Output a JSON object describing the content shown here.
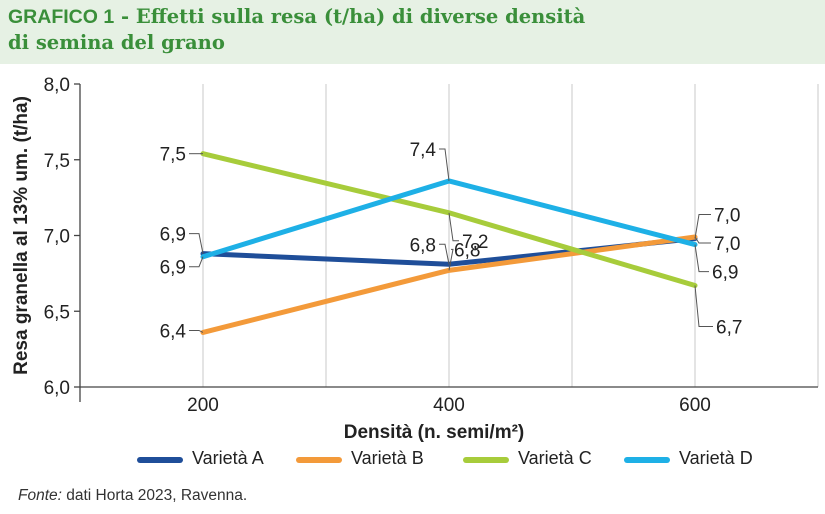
{
  "figure": {
    "title_prefix": "GRAFICO 1",
    "title_text": " - Effetti sulla resa (t/ha) di diverse densità",
    "title_line2": "di semina del grano",
    "source_label": "Fonte:",
    "source_text": " dati Horta 2023, Ravenna."
  },
  "colors": {
    "header_bg": "#e6f1e4",
    "title": "#3a8f3a",
    "varieta_a": "#1f4e99",
    "varieta_b": "#f39a3a",
    "varieta_c": "#a7cc3b",
    "varieta_d": "#1eb0e6"
  },
  "chart_data": {
    "type": "line",
    "title": "GRAFICO 1 - Effetti sulla resa (t/ha) di diverse densità di semina del grano",
    "xlabel": "Densità (n. semi/m²)",
    "ylabel": "Resa granella al 13% um. (t/ha)",
    "categories": [
      "200",
      "400",
      "600"
    ],
    "ylim": [
      6.0,
      8.0
    ],
    "yticks": [
      "6,0",
      "6,5",
      "7,0",
      "7,5",
      "8,0"
    ],
    "grid": "vertical",
    "legend": "bottom",
    "series": [
      {
        "name": "Varietà A",
        "color": "#1f4e99",
        "values": [
          6.88,
          6.81,
          6.98
        ],
        "labels": [
          "6,9",
          "6,8",
          "7,0"
        ]
      },
      {
        "name": "Varietà B",
        "color": "#f39a3a",
        "values": [
          6.36,
          6.77,
          6.99
        ],
        "labels": [
          "6,4",
          "6,8",
          "7,0"
        ]
      },
      {
        "name": "Varietà C",
        "color": "#a7cc3b",
        "values": [
          7.54,
          7.15,
          6.67
        ],
        "labels": [
          "7,5",
          "7,2",
          "6,7"
        ]
      },
      {
        "name": "Varietà D",
        "color": "#1eb0e6",
        "values": [
          6.86,
          7.36,
          6.94
        ],
        "labels": [
          "6,9",
          "7,4",
          "6,9"
        ]
      }
    ]
  }
}
